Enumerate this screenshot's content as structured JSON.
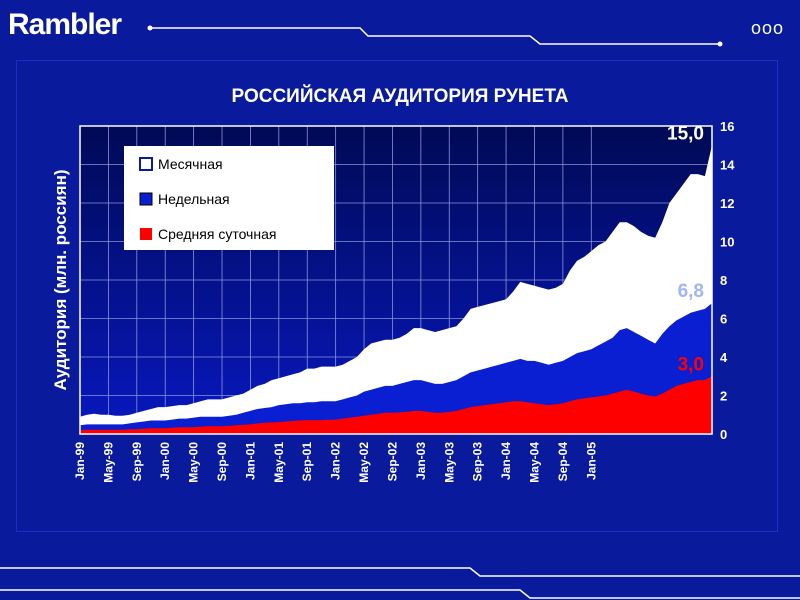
{
  "brand": {
    "logo": "Rambler",
    "dots": "ooo"
  },
  "colors": {
    "background": "#0a1a9c",
    "monthly": "#ffffff",
    "weekly": "#0a1fd1",
    "daily": "#ff0000"
  },
  "chart_data": {
    "type": "area",
    "title": "РОССИЙСКАЯ АУДИТОРИЯ РУНЕТА",
    "xlabel": "",
    "ylabel": "Аудитория (млн. россиян)",
    "ylim": [
      0,
      16
    ],
    "yticks": [
      "0",
      "2",
      "4",
      "6",
      "8",
      "10",
      "12",
      "14",
      "16"
    ],
    "x_tick_labels": [
      "Jan-99",
      "May-99",
      "Sep-99",
      "Jan-00",
      "May-00",
      "Sep-00",
      "Jan-01",
      "May-01",
      "Sep-01",
      "Jan-02",
      "May-02",
      "Sep-02",
      "Jan-03",
      "May-03",
      "Sep-03",
      "Jan-04",
      "May-04",
      "Sep-04",
      "Jan-05"
    ],
    "grid": true,
    "legend_position": "top-left",
    "x_start": "1999-01",
    "x_end": "2005-05",
    "series": [
      {
        "name": "Месячная",
        "color": "#ffffff",
        "values": [
          0.9,
          1.0,
          1.05,
          1.0,
          1.0,
          0.95,
          0.95,
          1.0,
          1.1,
          1.2,
          1.3,
          1.4,
          1.4,
          1.45,
          1.5,
          1.5,
          1.6,
          1.7,
          1.8,
          1.8,
          1.8,
          1.9,
          2.0,
          2.1,
          2.3,
          2.5,
          2.6,
          2.8,
          2.9,
          3.0,
          3.1,
          3.2,
          3.4,
          3.4,
          3.5,
          3.5,
          3.5,
          3.6,
          3.8,
          4.0,
          4.4,
          4.7,
          4.8,
          4.9,
          4.9,
          5.0,
          5.2,
          5.5,
          5.5,
          5.4,
          5.3,
          5.4,
          5.5,
          5.6,
          6.0,
          6.5,
          6.6,
          6.7,
          6.8,
          6.9,
          7.0,
          7.4,
          7.9,
          7.8,
          7.7,
          7.6,
          7.5,
          7.6,
          7.8,
          8.5,
          9.0,
          9.2,
          9.5,
          9.8,
          10.0,
          10.5,
          11.0,
          11.0,
          10.8,
          10.5,
          10.3,
          10.2,
          11.0,
          12.0,
          12.5,
          13.0,
          13.5,
          13.5,
          13.4,
          15.0
        ]
      },
      {
        "name": "Недельная",
        "color": "#0a1fd1",
        "values": [
          0.45,
          0.5,
          0.5,
          0.5,
          0.5,
          0.5,
          0.5,
          0.55,
          0.6,
          0.65,
          0.7,
          0.7,
          0.7,
          0.75,
          0.8,
          0.8,
          0.85,
          0.9,
          0.9,
          0.9,
          0.9,
          0.95,
          1.0,
          1.1,
          1.2,
          1.3,
          1.35,
          1.4,
          1.5,
          1.55,
          1.6,
          1.6,
          1.65,
          1.65,
          1.7,
          1.7,
          1.7,
          1.8,
          1.9,
          2.0,
          2.2,
          2.3,
          2.4,
          2.5,
          2.5,
          2.6,
          2.7,
          2.8,
          2.8,
          2.7,
          2.6,
          2.6,
          2.7,
          2.8,
          3.0,
          3.2,
          3.3,
          3.4,
          3.5,
          3.6,
          3.7,
          3.8,
          3.9,
          3.8,
          3.8,
          3.7,
          3.6,
          3.7,
          3.8,
          4.0,
          4.2,
          4.3,
          4.4,
          4.6,
          4.8,
          5.0,
          5.4,
          5.5,
          5.3,
          5.1,
          4.9,
          4.7,
          5.2,
          5.6,
          5.9,
          6.1,
          6.3,
          6.4,
          6.5,
          6.8
        ]
      },
      {
        "name": "Средняя суточная",
        "color": "#ff0000",
        "values": [
          0.2,
          0.22,
          0.22,
          0.22,
          0.22,
          0.22,
          0.22,
          0.25,
          0.25,
          0.28,
          0.3,
          0.3,
          0.3,
          0.32,
          0.35,
          0.35,
          0.36,
          0.38,
          0.4,
          0.4,
          0.4,
          0.42,
          0.45,
          0.48,
          0.5,
          0.55,
          0.58,
          0.6,
          0.62,
          0.65,
          0.68,
          0.7,
          0.72,
          0.72,
          0.72,
          0.73,
          0.75,
          0.8,
          0.85,
          0.9,
          0.95,
          1.0,
          1.05,
          1.1,
          1.1,
          1.12,
          1.15,
          1.2,
          1.2,
          1.15,
          1.1,
          1.1,
          1.15,
          1.2,
          1.3,
          1.4,
          1.45,
          1.5,
          1.55,
          1.6,
          1.65,
          1.7,
          1.7,
          1.65,
          1.6,
          1.55,
          1.5,
          1.55,
          1.6,
          1.7,
          1.8,
          1.85,
          1.9,
          1.95,
          2.0,
          2.1,
          2.2,
          2.3,
          2.2,
          2.1,
          2.0,
          1.95,
          2.1,
          2.3,
          2.5,
          2.6,
          2.7,
          2.8,
          2.8,
          3.0
        ]
      }
    ],
    "annotations": [
      {
        "text": "15,0",
        "series": "Месячная",
        "color": "#ffffff"
      },
      {
        "text": "6,8",
        "series": "Недельная",
        "color": "#a0b4ff"
      },
      {
        "text": "3,0",
        "series": "Средняя суточная",
        "color": "#ff0000"
      }
    ]
  }
}
